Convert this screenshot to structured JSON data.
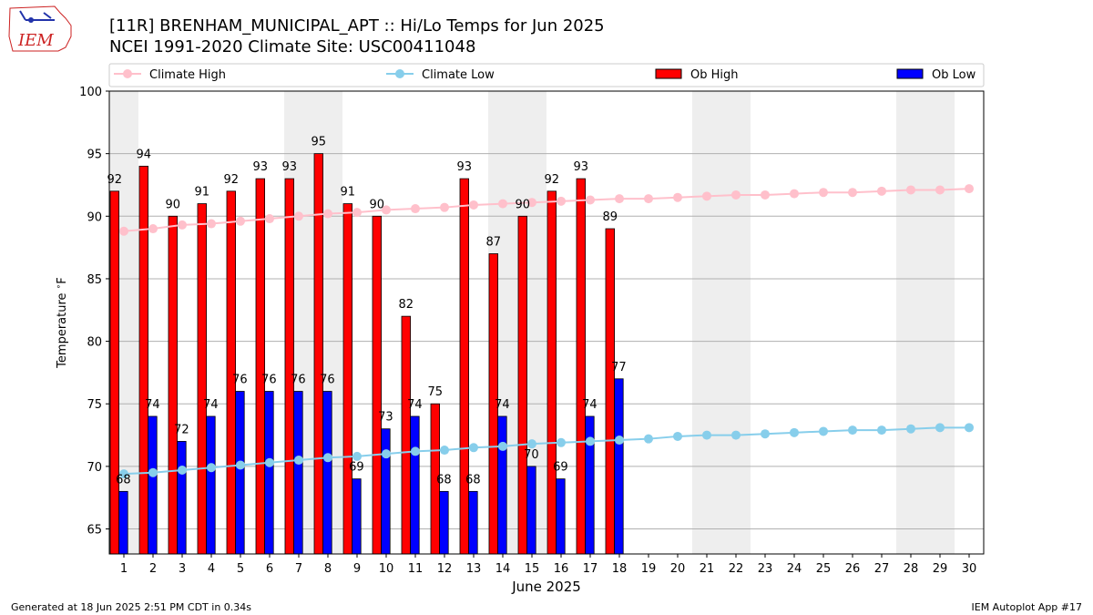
{
  "logo": {
    "text": "IEM"
  },
  "header": {
    "title_line1": "[11R] BRENHAM_MUNICIPAL_APT :: Hi/Lo Temps for Jun 2025",
    "title_line2": "NCEI 1991-2020 Climate Site: USC00411048"
  },
  "footer": {
    "left": "Generated at 18 Jun 2025 2:51 PM CDT in 0.34s",
    "right": "IEM Autoplot App #17"
  },
  "colors": {
    "ob_high": "#ff0000",
    "ob_low": "#0000ff",
    "climate_high": "#ffc0cb",
    "climate_low": "#87ceeb",
    "weekend_band": "#eeeeee",
    "grid": "#b0b0b0"
  },
  "chart_data": {
    "type": "bar",
    "title": "[11R] BRENHAM_MUNICIPAL_APT :: Hi/Lo Temps for Jun 2025",
    "subtitle": "NCEI 1991-2020 Climate Site: USC00411048",
    "xlabel": "June 2025",
    "ylabel": "Temperature $^\\circ$F",
    "ylim": [
      63,
      100
    ],
    "yticks": [
      65,
      70,
      75,
      80,
      85,
      90,
      95,
      100
    ],
    "grid": "horizontal",
    "legend_position": "top",
    "legend": [
      {
        "label": "Climate High",
        "kind": "line"
      },
      {
        "label": "Climate Low",
        "kind": "line"
      },
      {
        "label": "Ob High",
        "kind": "bar"
      },
      {
        "label": "Ob Low",
        "kind": "bar"
      }
    ],
    "days": [
      1,
      2,
      3,
      4,
      5,
      6,
      7,
      8,
      9,
      10,
      11,
      12,
      13,
      14,
      15,
      16,
      17,
      18,
      19,
      20,
      21,
      22,
      23,
      24,
      25,
      26,
      27,
      28,
      29,
      30
    ],
    "weekend_days": [
      1,
      7,
      8,
      14,
      15,
      21,
      22,
      28,
      29
    ],
    "series": [
      {
        "name": "Ob High",
        "kind": "bar",
        "values": [
          92,
          94,
          90,
          91,
          92,
          93,
          93,
          95,
          91,
          90,
          82,
          75,
          93,
          87,
          90,
          92,
          93,
          89
        ]
      },
      {
        "name": "Ob Low",
        "kind": "bar",
        "values": [
          68,
          74,
          72,
          74,
          76,
          76,
          76,
          76,
          69,
          73,
          74,
          68,
          68,
          74,
          70,
          69,
          74,
          77
        ]
      },
      {
        "name": "Climate High",
        "kind": "line",
        "values": [
          88.8,
          89.0,
          89.3,
          89.4,
          89.6,
          89.8,
          90.0,
          90.2,
          90.3,
          90.5,
          90.6,
          90.7,
          90.9,
          91.0,
          91.1,
          91.2,
          91.3,
          91.4,
          91.4,
          91.5,
          91.6,
          91.7,
          91.7,
          91.8,
          91.9,
          91.9,
          92.0,
          92.1,
          92.1,
          92.2
        ]
      },
      {
        "name": "Climate Low",
        "kind": "line",
        "values": [
          69.4,
          69.5,
          69.7,
          69.9,
          70.1,
          70.3,
          70.5,
          70.7,
          70.8,
          71.0,
          71.2,
          71.3,
          71.5,
          71.6,
          71.8,
          71.9,
          72.0,
          72.1,
          72.2,
          72.4,
          72.5,
          72.5,
          72.6,
          72.7,
          72.8,
          72.9,
          72.9,
          73.0,
          73.1,
          73.1
        ]
      }
    ]
  }
}
